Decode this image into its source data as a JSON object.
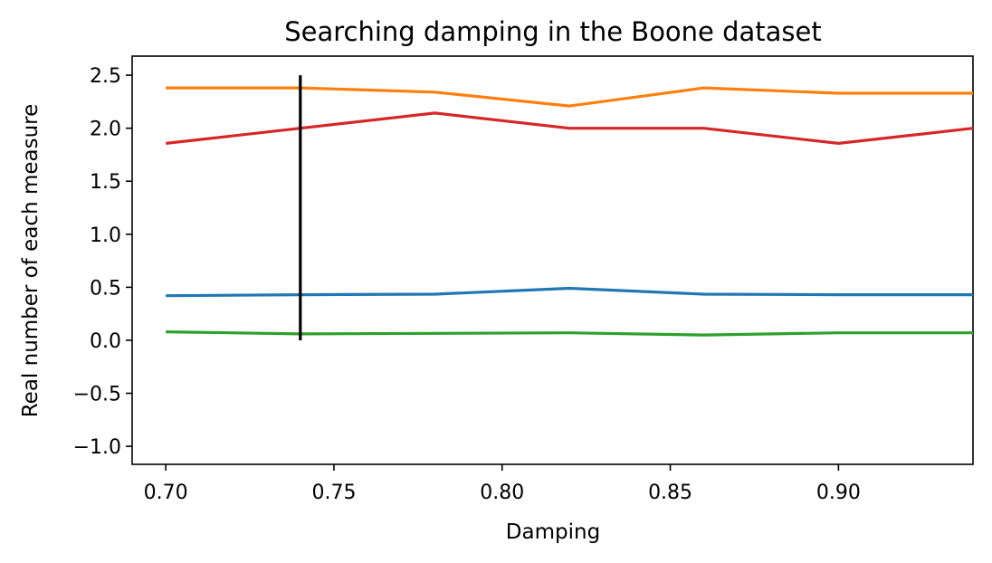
{
  "chart_data": {
    "type": "line",
    "title": "Searching damping in the Boone dataset",
    "xlabel": "Damping",
    "ylabel": "Real number of each measure",
    "xlim": [
      0.69,
      0.94
    ],
    "ylim": [
      -1.17,
      2.68
    ],
    "xticks": [
      "0.70",
      "0.75",
      "0.80",
      "0.85",
      "0.90"
    ],
    "yticks": [
      "−1.0",
      "−0.5",
      "0.0",
      "0.5",
      "1.0",
      "1.5",
      "2.0",
      "2.5"
    ],
    "x": [
      0.7,
      0.74,
      0.78,
      0.82,
      0.86,
      0.9,
      0.94
    ],
    "series": [
      {
        "color": "#1f77b4",
        "values": [
          0.42,
          0.43,
          0.435,
          0.49,
          0.435,
          0.43,
          0.43
        ]
      },
      {
        "color": "#ff7f0e",
        "values": [
          2.38,
          2.38,
          2.34,
          2.21,
          2.38,
          2.33,
          2.33
        ]
      },
      {
        "color": "#2ca02c",
        "values": [
          0.08,
          0.06,
          0.065,
          0.07,
          0.05,
          0.07,
          0.07
        ]
      },
      {
        "color": "#d62728",
        "values": [
          1.857,
          2.0,
          2.143,
          2.0,
          2.0,
          1.857,
          2.0
        ]
      }
    ],
    "vline": {
      "x": 0.74,
      "ymin": 0.0,
      "ymax": 2.5,
      "color": "#000000"
    },
    "grid": false,
    "legend": "none"
  }
}
